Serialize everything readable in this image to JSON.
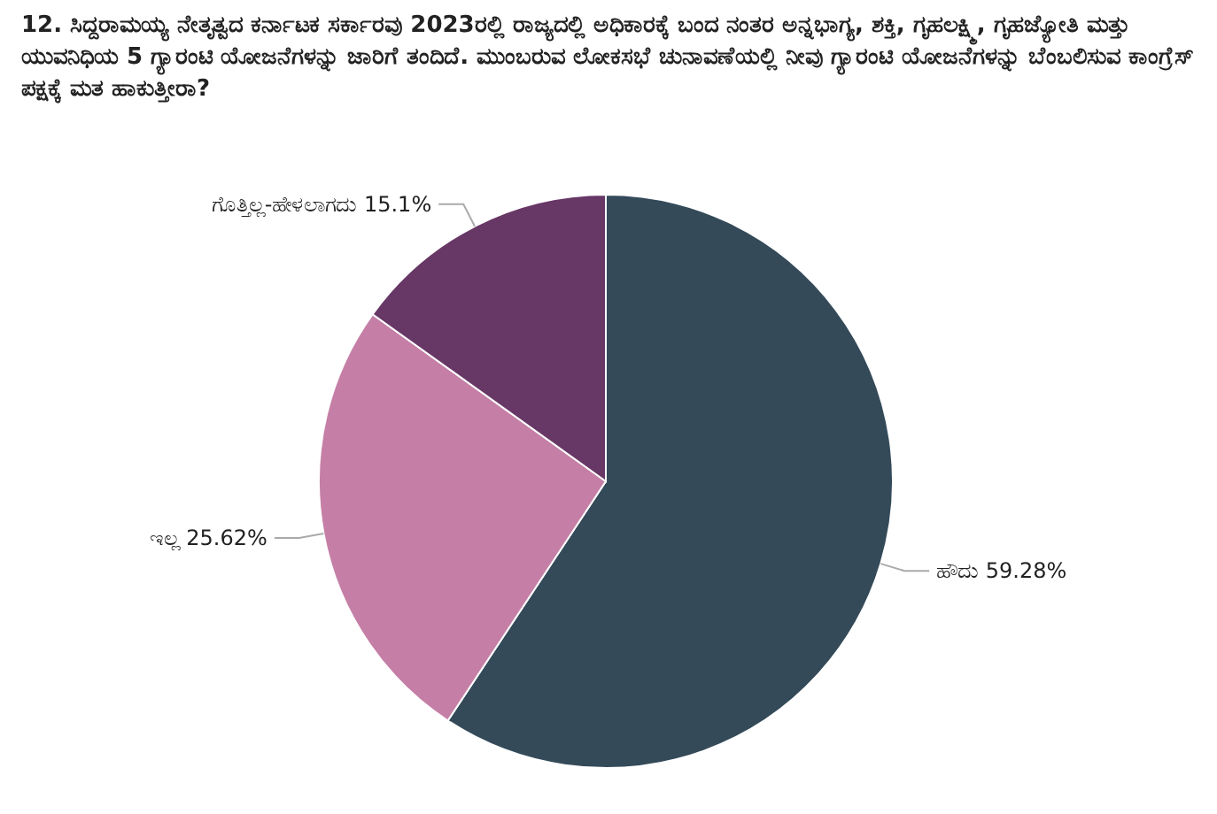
{
  "chart_data": {
    "type": "pie",
    "title": "12. ಸಿದ್ದರಾಮಯ್ಯ ನೇತೃತ್ವದ ಕರ್ನಾಟಕ ಸರ್ಕಾರವು 2023ರಲ್ಲಿ ರಾಜ್ಯದಲ್ಲಿ ಅಧಿಕಾರಕ್ಕೆ ಬಂದ ನಂತರ ಅನ್ನಭಾಗ್ಯ, ಶಕ್ತಿ, ಗೃಹಲಕ್ಷ್ಮಿ, ಗೃಹಜ್ಯೋತಿ ಮತ್ತು ಯುವನಿಧಿಯ 5 ಗ್ಯಾರಂಟಿ ಯೋಜನೆಗಳನ್ನು ಜಾರಿಗೆ ತಂದಿದೆ. ಮುಂಬರುವ ಲೋಕಸಭೆ ಚುನಾವಣೆಯಲ್ಲಿ ನೀವು ಗ್ಯಾರಂಟಿ ಯೋಜನೆಗಳನ್ನು ಬೆಂಬಲಿಸುವ ಕಾಂಗ್ರೆಸ್ ಪಕ್ಷಕ್ಕೆ ಮತ ಹಾಕುತ್ತೀರಾ?",
    "categories": [
      "ಹೌದು",
      "ಇಲ್ಲ",
      "ಗೊತ್ತಿಲ್ಲ-ಹೇಳಲಾಗದು"
    ],
    "values": [
      59.28,
      25.62,
      15.1
    ],
    "value_labels": [
      "59.28%",
      "25.62%",
      "15.1%"
    ],
    "colors": [
      "#344a59",
      "#c57fa6",
      "#673766"
    ],
    "legend": false
  }
}
